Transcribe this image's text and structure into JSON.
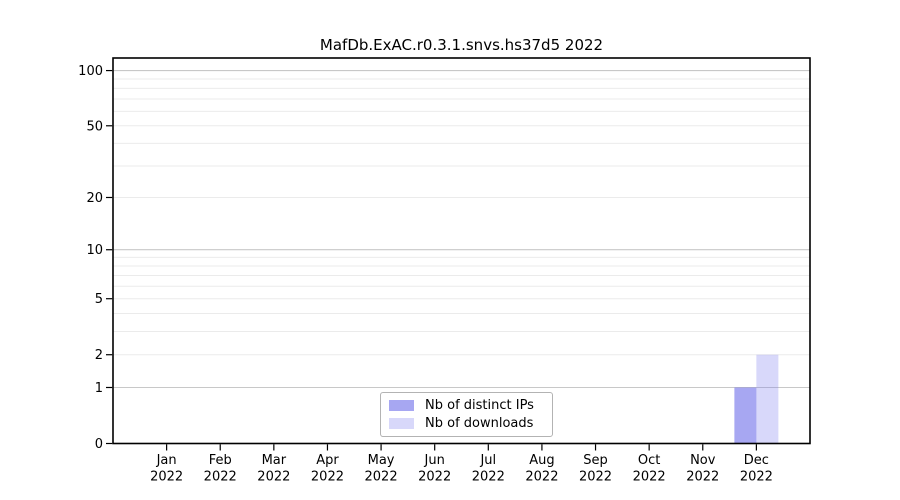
{
  "chart_data": {
    "type": "bar",
    "title": "MafDb.ExAC.r0.3.1.snvs.hs37d5 2022",
    "categories": [
      "Jan",
      "Feb",
      "Mar",
      "Apr",
      "May",
      "Jun",
      "Jul",
      "Aug",
      "Sep",
      "Oct",
      "Nov",
      "Dec"
    ],
    "category_year": "2022",
    "series": [
      {
        "name": "Nb of distinct IPs",
        "color": "rgba(98,98,232,0.56)",
        "solid_color": "#a8a8f4",
        "values": [
          0,
          0,
          0,
          0,
          0,
          0,
          0,
          0,
          0,
          0,
          0,
          1
        ]
      },
      {
        "name": "Nb of downloads",
        "color": "rgba(125,125,240,0.30)",
        "solid_color": "#dcdcf8",
        "values": [
          0,
          0,
          0,
          0,
          0,
          0,
          0,
          0,
          0,
          0,
          0,
          2
        ]
      }
    ],
    "yscale": "log1p",
    "ylim": [
      0,
      117
    ],
    "yticks": [
      0,
      1,
      2,
      5,
      10,
      20,
      50,
      100
    ],
    "major_grid_values": [
      1,
      10,
      100
    ],
    "minor_grid_values": [
      2,
      3,
      4,
      5,
      6,
      7,
      8,
      9,
      20,
      30,
      40,
      50,
      60,
      70,
      80,
      90
    ],
    "grid": "horizontal",
    "legend_position": "lower center",
    "colors": {
      "axis": "#000000",
      "major_grid": "#c8c8c8",
      "minor_grid": "#ebebeb",
      "legend_border": "#b3b3b3",
      "background": "#ffffff"
    }
  }
}
